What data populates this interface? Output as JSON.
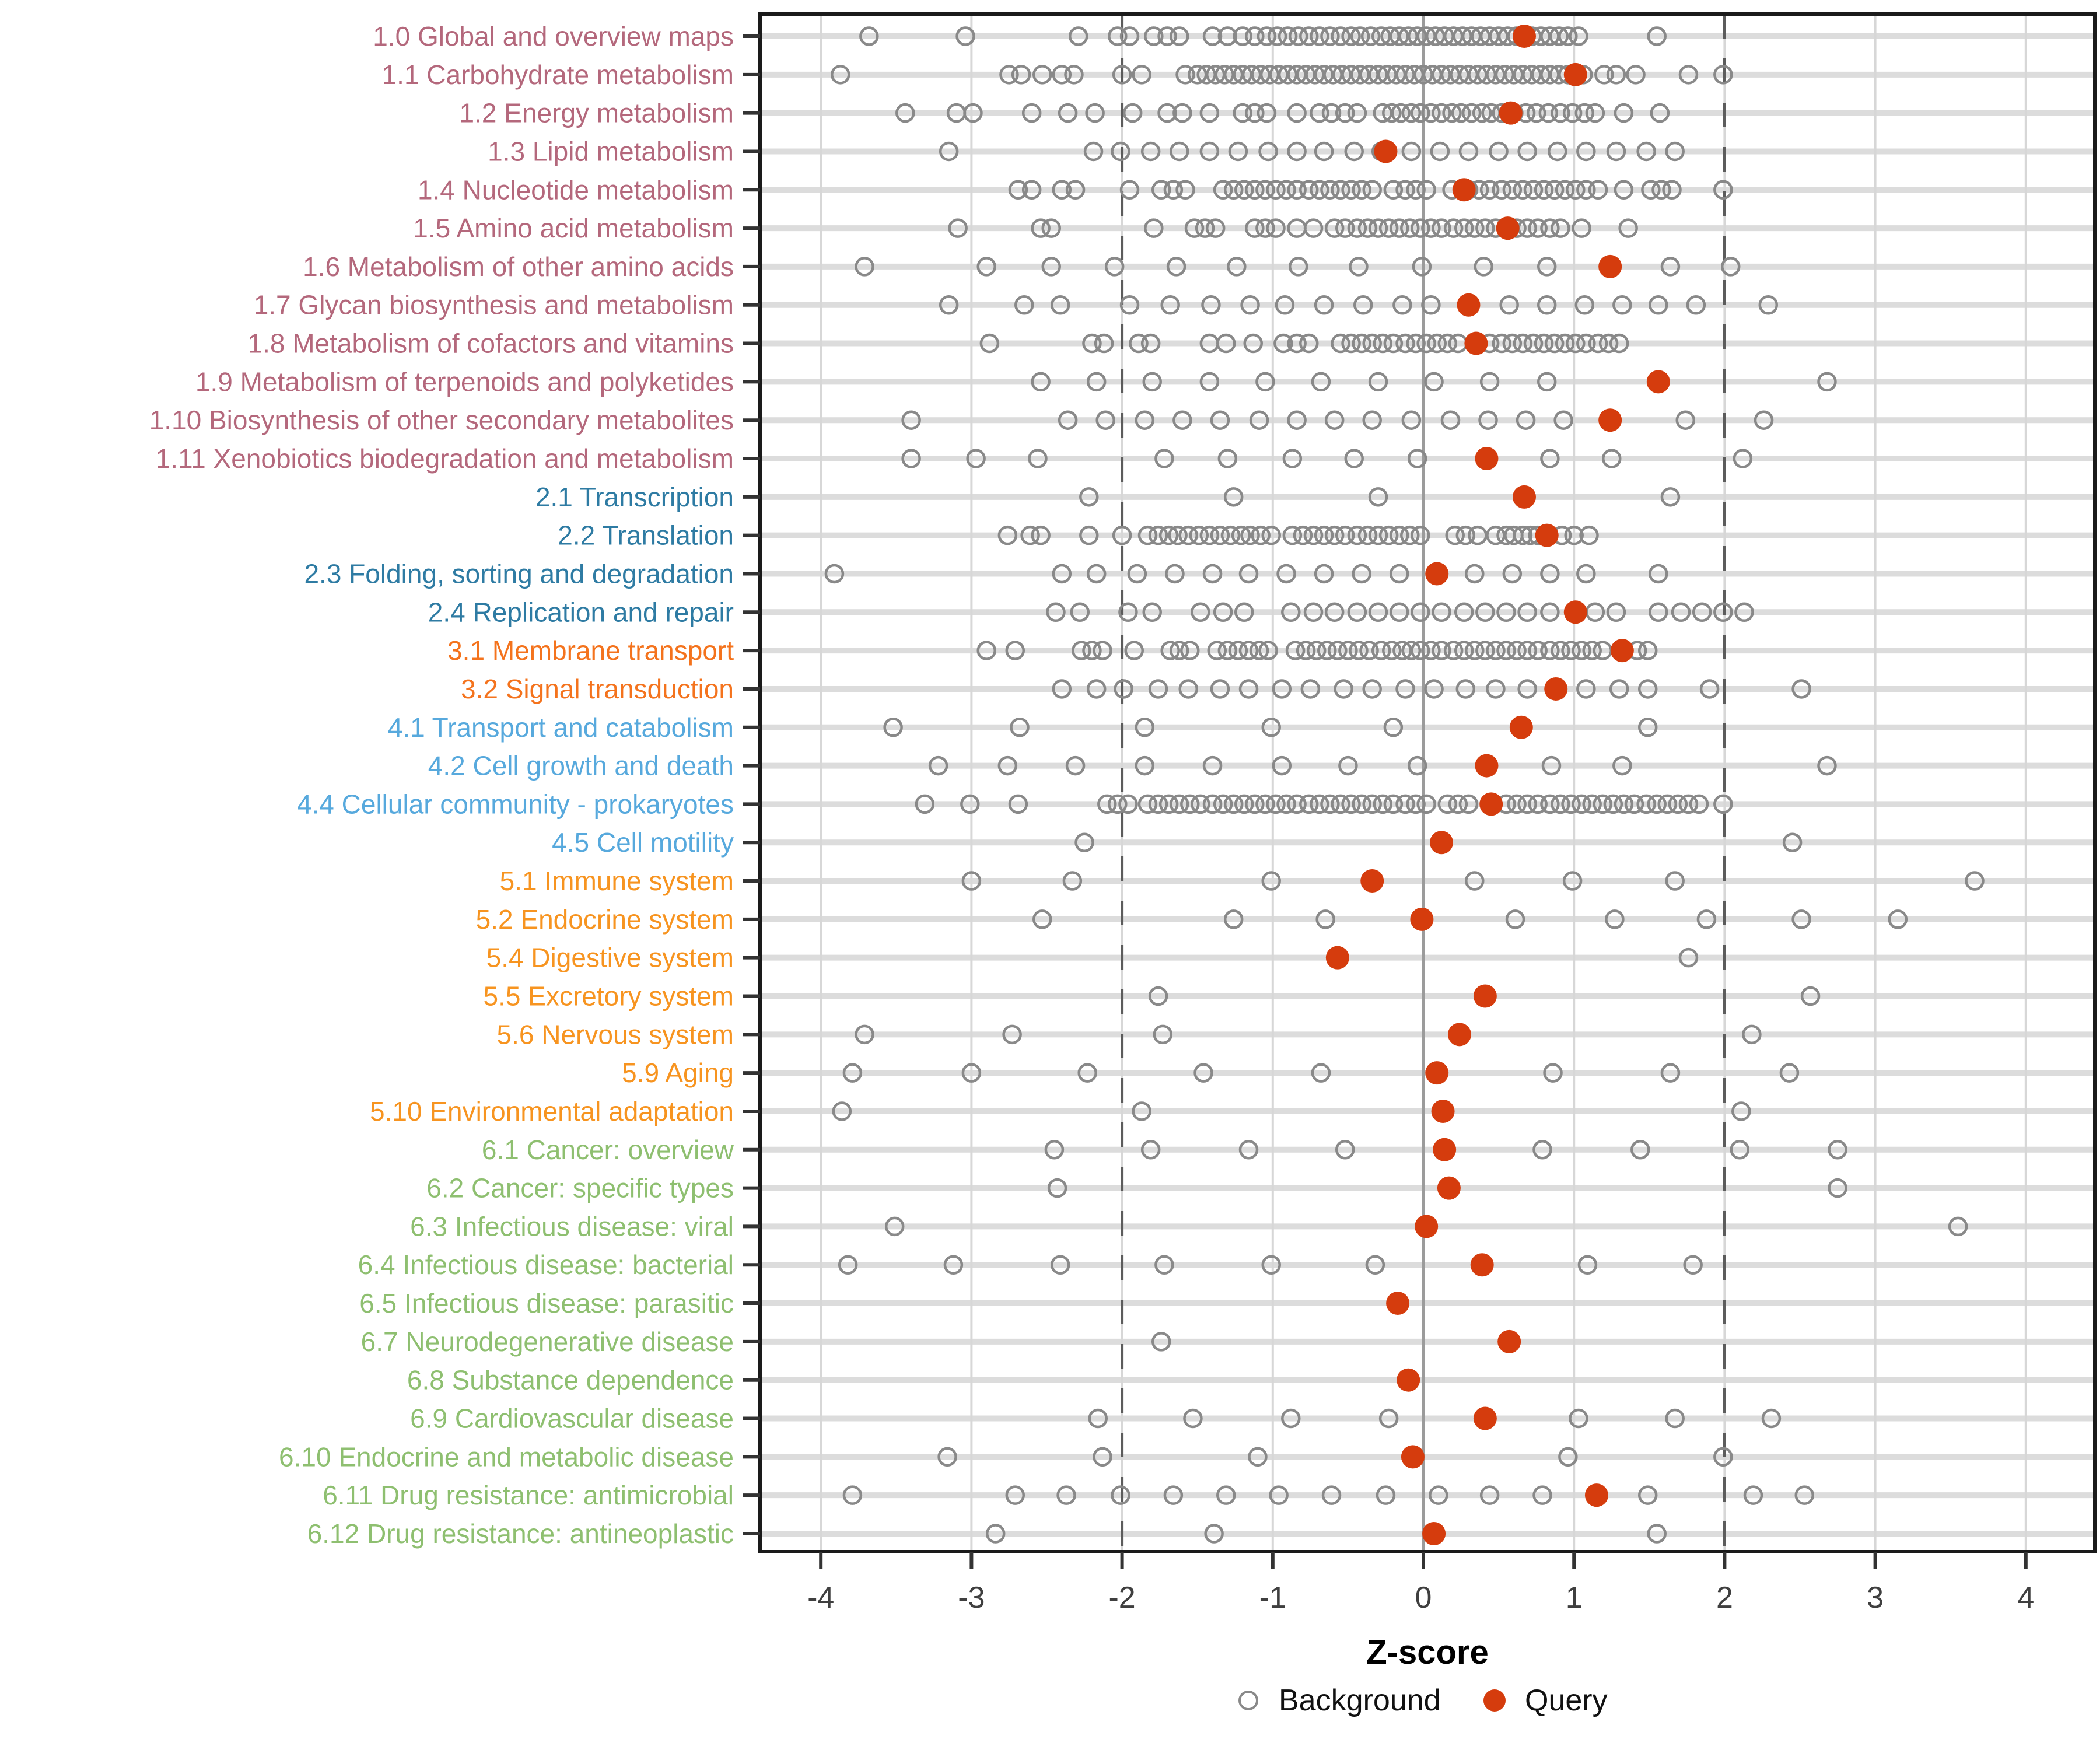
{
  "figure": {
    "colors": {
      "query": "#d53c0d",
      "background_stroke": "#898989",
      "row_grid": "#dcdcdc",
      "minor_grid": "#d7d7d7",
      "zero_line": "#9b9b9b",
      "dashed_line": "#5c5c5c",
      "panel_border": "#1a1a1a",
      "axis_text": "#3f3f3f",
      "groups": {
        "1": "#b4687c",
        "2": "#2e7ba3",
        "3": "#f4731d",
        "4": "#57a9dd",
        "5": "#f79420",
        "6": "#8ebf70"
      }
    },
    "legend": {
      "background_label": "Background",
      "query_label": "Query"
    }
  },
  "chart_data": {
    "type": "scatter",
    "title": "",
    "xlabel": "Z-score",
    "xlim": [
      -4.4,
      4.45
    ],
    "x_ticks": [
      "-4",
      "-3",
      "-2",
      "-1",
      "0",
      "1",
      "2",
      "3",
      "4"
    ],
    "x_tick_values": [
      -4,
      -3,
      -2,
      -1,
      0,
      1,
      2,
      3,
      4
    ],
    "grid": true,
    "legend_position": "bottom",
    "reference_lines": {
      "solid_at": 0,
      "dashed_at": [
        -2,
        2
      ]
    },
    "series_legend": [
      "Background",
      "Query"
    ],
    "rows": [
      {
        "label": "1.0 Global and overview maps",
        "group": "1",
        "query": 0.67,
        "background": [
          -3.68,
          -3.04,
          -2.29,
          -2.03,
          -1.95,
          -1.79,
          -1.7,
          -1.62,
          -1.4,
          -1.3,
          -1.2,
          -1.12,
          -1.04,
          -0.97,
          -0.9,
          -0.83,
          -0.76,
          -0.69,
          -0.62,
          -0.55,
          -0.48,
          -0.42,
          -0.35,
          -0.28,
          -0.22,
          -0.16,
          -0.1,
          -0.04,
          0.02,
          0.08,
          0.14,
          0.2,
          0.26,
          0.32,
          0.38,
          0.44,
          0.5,
          0.56,
          0.62,
          0.72,
          0.78,
          0.84,
          0.9,
          0.96,
          1.03,
          1.55
        ]
      },
      {
        "label": "1.1 Carbohydrate metabolism",
        "group": "1",
        "query": 1.01,
        "background": [
          -3.87,
          -2.75,
          -2.67,
          -2.53,
          -2.4,
          -2.32,
          -2.0,
          -1.87,
          -1.58,
          -1.5,
          -1.44,
          -1.38,
          -1.32,
          -1.26,
          -1.2,
          -1.14,
          -1.08,
          -1.02,
          -0.96,
          -0.9,
          -0.84,
          -0.78,
          -0.72,
          -0.66,
          -0.6,
          -0.54,
          -0.48,
          -0.42,
          -0.36,
          -0.3,
          -0.24,
          -0.18,
          -0.12,
          -0.06,
          0.0,
          0.06,
          0.12,
          0.18,
          0.24,
          0.3,
          0.36,
          0.42,
          0.48,
          0.54,
          0.6,
          0.66,
          0.72,
          0.78,
          0.84,
          0.9,
          0.96,
          1.06,
          1.2,
          1.28,
          1.41,
          1.76,
          1.99
        ]
      },
      {
        "label": "1.2 Energy metabolism",
        "group": "1",
        "query": 0.58,
        "background": [
          -3.44,
          -3.1,
          -2.99,
          -2.6,
          -2.36,
          -2.18,
          -1.93,
          -1.7,
          -1.6,
          -1.42,
          -1.2,
          -1.12,
          -1.04,
          -0.84,
          -0.69,
          -0.61,
          -0.52,
          -0.44,
          -0.27,
          -0.21,
          -0.15,
          -0.08,
          -0.02,
          0.05,
          0.12,
          0.19,
          0.25,
          0.32,
          0.39,
          0.45,
          0.52,
          0.6,
          0.68,
          0.75,
          0.83,
          0.91,
          0.99,
          1.07,
          1.14,
          1.33,
          1.57
        ]
      },
      {
        "label": "1.3 Lipid metabolism",
        "group": "1",
        "query": -0.25,
        "background": [
          -3.15,
          -2.19,
          -2.01,
          -1.81,
          -1.62,
          -1.42,
          -1.23,
          -1.03,
          -0.84,
          -0.66,
          -0.46,
          -0.28,
          -0.08,
          0.11,
          0.3,
          0.5,
          0.69,
          0.89,
          1.08,
          1.28,
          1.48,
          1.67
        ]
      },
      {
        "label": "1.4 Nucleotide metabolism",
        "group": "1",
        "query": 0.27,
        "background": [
          -2.69,
          -2.6,
          -2.4,
          -2.31,
          -1.95,
          -1.74,
          -1.66,
          -1.58,
          -1.33,
          -1.26,
          -1.19,
          -1.12,
          -1.05,
          -0.98,
          -0.91,
          -0.84,
          -0.76,
          -0.69,
          -0.62,
          -0.55,
          -0.48,
          -0.41,
          -0.34,
          -0.2,
          -0.12,
          -0.05,
          0.02,
          0.19,
          0.3,
          0.37,
          0.44,
          0.52,
          0.59,
          0.66,
          0.73,
          0.8,
          0.87,
          0.94,
          1.01,
          1.08,
          1.16,
          1.33,
          1.51,
          1.58,
          1.65,
          1.99
        ]
      },
      {
        "label": "1.5 Amino acid metabolism",
        "group": "1",
        "query": 0.56,
        "background": [
          -3.09,
          -2.54,
          -2.47,
          -1.79,
          -1.52,
          -1.45,
          -1.38,
          -1.12,
          -1.05,
          -0.98,
          -0.84,
          -0.73,
          -0.59,
          -0.52,
          -0.44,
          -0.37,
          -0.3,
          -0.23,
          -0.16,
          -0.09,
          -0.02,
          0.05,
          0.12,
          0.2,
          0.27,
          0.34,
          0.41,
          0.48,
          0.62,
          0.69,
          0.76,
          0.84,
          0.91,
          1.05,
          1.36
        ]
      },
      {
        "label": "1.6 Metabolism of other amino acids",
        "group": "1",
        "query": 1.24,
        "background": [
          -3.71,
          -2.9,
          -2.47,
          -2.05,
          -1.64,
          -1.24,
          -0.83,
          -0.43,
          -0.01,
          0.4,
          0.82,
          1.64,
          2.04
        ]
      },
      {
        "label": "1.7 Glycan biosynthesis and metabolism",
        "group": "1",
        "query": 0.3,
        "background": [
          -3.15,
          -2.65,
          -2.41,
          -1.95,
          -1.68,
          -1.41,
          -1.15,
          -0.92,
          -0.66,
          -0.4,
          -0.14,
          0.05,
          0.57,
          0.82,
          1.07,
          1.32,
          1.56,
          1.81,
          2.29
        ]
      },
      {
        "label": "1.8 Metabolism of cofactors and vitamins",
        "group": "1",
        "query": 0.35,
        "background": [
          -2.88,
          -2.2,
          -2.12,
          -1.89,
          -1.81,
          -1.42,
          -1.31,
          -1.13,
          -0.93,
          -0.84,
          -0.76,
          -0.55,
          -0.48,
          -0.41,
          -0.34,
          -0.27,
          -0.2,
          -0.12,
          -0.05,
          0.02,
          0.09,
          0.16,
          0.23,
          0.44,
          0.52,
          0.59,
          0.66,
          0.73,
          0.8,
          0.87,
          0.94,
          1.01,
          1.08,
          1.16,
          1.23,
          1.3
        ]
      },
      {
        "label": "1.9 Metabolism of terpenoids and polyketides",
        "group": "1",
        "query": 1.56,
        "background": [
          -2.54,
          -2.17,
          -1.8,
          -1.42,
          -1.05,
          -0.68,
          -0.3,
          0.07,
          0.44,
          0.82,
          2.68
        ]
      },
      {
        "label": "1.10 Biosynthesis of other secondary metabolites",
        "group": "1",
        "query": 1.24,
        "background": [
          -3.4,
          -2.36,
          -2.11,
          -1.85,
          -1.6,
          -1.35,
          -1.09,
          -0.84,
          -0.59,
          -0.34,
          -0.08,
          0.18,
          0.43,
          0.68,
          0.93,
          1.74,
          2.26
        ]
      },
      {
        "label": "1.11 Xenobiotics biodegradation and metabolism",
        "group": "1",
        "query": 0.42,
        "background": [
          -3.4,
          -2.97,
          -2.56,
          -1.72,
          -1.3,
          -0.87,
          -0.46,
          -0.04,
          0.84,
          1.25,
          2.12
        ]
      },
      {
        "label": "2.1 Transcription",
        "group": "2",
        "query": 0.67,
        "background": [
          -2.22,
          -1.26,
          -0.3,
          1.64
        ]
      },
      {
        "label": "2.2 Translation",
        "group": "2",
        "query": 0.82,
        "background": [
          -2.76,
          -2.61,
          -2.54,
          -2.22,
          -2.0,
          -1.83,
          -1.76,
          -1.69,
          -1.63,
          -1.56,
          -1.49,
          -1.42,
          -1.35,
          -1.28,
          -1.21,
          -1.15,
          -1.08,
          -1.01,
          -0.87,
          -0.8,
          -0.73,
          -0.66,
          -0.59,
          -0.52,
          -0.44,
          -0.37,
          -0.3,
          -0.23,
          -0.16,
          -0.09,
          -0.02,
          0.21,
          0.28,
          0.36,
          0.48,
          0.55,
          0.6,
          0.66,
          0.71,
          0.76,
          0.92,
          1.0,
          1.1
        ]
      },
      {
        "label": "2.3 Folding, sorting and degradation",
        "group": "2",
        "query": 0.09,
        "background": [
          -3.91,
          -2.4,
          -2.17,
          -1.9,
          -1.65,
          -1.4,
          -1.16,
          -0.91,
          -0.66,
          -0.41,
          -0.16,
          0.34,
          0.59,
          0.84,
          1.08,
          1.56
        ]
      },
      {
        "label": "2.4 Replication and repair",
        "group": "2",
        "query": 1.01,
        "background": [
          -2.44,
          -2.28,
          -1.96,
          -1.8,
          -1.48,
          -1.33,
          -1.19,
          -0.88,
          -0.73,
          -0.59,
          -0.44,
          -0.3,
          -0.16,
          -0.02,
          0.12,
          0.27,
          0.41,
          0.55,
          0.69,
          0.84,
          1.14,
          1.28,
          1.56,
          1.71,
          1.85,
          1.99,
          2.13
        ]
      },
      {
        "label": "3.1 Membrane transport",
        "group": "3",
        "query": 1.32,
        "background": [
          -2.9,
          -2.71,
          -2.27,
          -2.2,
          -2.13,
          -1.92,
          -1.68,
          -1.62,
          -1.55,
          -1.37,
          -1.3,
          -1.23,
          -1.16,
          -1.09,
          -1.03,
          -0.85,
          -0.78,
          -0.71,
          -0.64,
          -0.57,
          -0.5,
          -0.43,
          -0.36,
          -0.28,
          -0.21,
          -0.14,
          -0.08,
          -0.02,
          0.05,
          0.12,
          0.2,
          0.27,
          0.34,
          0.41,
          0.48,
          0.55,
          0.62,
          0.69,
          0.76,
          0.84,
          0.91,
          0.98,
          1.05,
          1.12,
          1.19,
          1.42,
          1.49
        ]
      },
      {
        "label": "3.2 Signal transduction",
        "group": "3",
        "query": 0.88,
        "background": [
          -2.4,
          -2.17,
          -1.99,
          -1.76,
          -1.56,
          -1.35,
          -1.16,
          -0.94,
          -0.75,
          -0.53,
          -0.34,
          -0.12,
          0.07,
          0.28,
          0.48,
          0.69,
          1.08,
          1.3,
          1.49,
          1.9,
          2.51
        ]
      },
      {
        "label": "4.1 Transport and catabolism",
        "group": "4",
        "query": 0.65,
        "background": [
          -3.52,
          -2.68,
          -1.85,
          -1.01,
          -0.2,
          1.49
        ]
      },
      {
        "label": "4.2 Cell growth and death",
        "group": "4",
        "query": 0.42,
        "background": [
          -3.22,
          -2.76,
          -2.31,
          -1.85,
          -1.4,
          -0.94,
          -0.5,
          -0.04,
          0.85,
          1.32,
          2.68
        ]
      },
      {
        "label": "4.4 Cellular community - prokaryotes",
        "group": "4",
        "query": 0.45,
        "background": [
          -3.31,
          -3.01,
          -2.69,
          -2.1,
          -2.03,
          -1.96,
          -1.83,
          -1.76,
          -1.69,
          -1.62,
          -1.55,
          -1.48,
          -1.4,
          -1.33,
          -1.26,
          -1.19,
          -1.12,
          -1.05,
          -0.98,
          -0.91,
          -0.84,
          -0.76,
          -0.69,
          -0.62,
          -0.55,
          -0.48,
          -0.41,
          -0.34,
          -0.27,
          -0.2,
          -0.12,
          -0.05,
          0.02,
          0.16,
          0.23,
          0.3,
          0.55,
          0.62,
          0.69,
          0.76,
          0.84,
          0.91,
          0.98,
          1.05,
          1.12,
          1.19,
          1.26,
          1.33,
          1.4,
          1.48,
          1.55,
          1.62,
          1.69,
          1.76,
          1.83,
          1.99
        ]
      },
      {
        "label": "4.5 Cell motility",
        "group": "4",
        "query": 0.12,
        "background": [
          -2.25,
          2.45
        ]
      },
      {
        "label": "5.1 Immune system",
        "group": "5",
        "query": -0.34,
        "background": [
          -3.0,
          -2.33,
          -1.01,
          0.34,
          0.99,
          1.67,
          3.66
        ]
      },
      {
        "label": "5.2 Endocrine system",
        "group": "5",
        "query": -0.01,
        "background": [
          -2.53,
          -1.26,
          -0.65,
          0.61,
          1.27,
          1.88,
          2.51,
          3.15
        ]
      },
      {
        "label": "5.4 Digestive system",
        "group": "5",
        "query": -0.57,
        "background": [
          1.76
        ]
      },
      {
        "label": "5.5 Excretory system",
        "group": "5",
        "query": 0.41,
        "background": [
          -1.76,
          2.57
        ]
      },
      {
        "label": "5.6 Nervous system",
        "group": "5",
        "query": 0.24,
        "background": [
          -3.71,
          -2.73,
          -1.73,
          2.18
        ]
      },
      {
        "label": "5.9 Aging",
        "group": "5",
        "query": 0.09,
        "background": [
          -3.79,
          -3.0,
          -2.23,
          -1.46,
          -0.68,
          0.86,
          1.64,
          2.43
        ]
      },
      {
        "label": "5.10 Environmental adaptation",
        "group": "5",
        "query": 0.13,
        "background": [
          -3.86,
          -1.87,
          2.11
        ]
      },
      {
        "label": "6.1 Cancer: overview",
        "group": "6",
        "query": 0.14,
        "background": [
          -2.45,
          -1.81,
          -1.16,
          -0.52,
          0.79,
          1.44,
          2.1,
          2.75
        ]
      },
      {
        "label": "6.2 Cancer: specific types",
        "group": "6",
        "query": 0.17,
        "background": [
          -2.43,
          2.75
        ]
      },
      {
        "label": "6.3 Infectious disease: viral",
        "group": "6",
        "query": 0.02,
        "background": [
          -3.51,
          3.55
        ]
      },
      {
        "label": "6.4 Infectious disease: bacterial",
        "group": "6",
        "query": 0.39,
        "background": [
          -3.82,
          -3.12,
          -2.41,
          -1.72,
          -1.01,
          -0.32,
          1.09,
          1.79
        ]
      },
      {
        "label": "6.5 Infectious disease: parasitic",
        "group": "6",
        "query": -0.17,
        "background": []
      },
      {
        "label": "6.7 Neurodegenerative disease",
        "group": "6",
        "query": 0.57,
        "background": [
          -1.74
        ]
      },
      {
        "label": "6.8 Substance dependence",
        "group": "6",
        "query": -0.1,
        "background": []
      },
      {
        "label": "6.9 Cardiovascular disease",
        "group": "6",
        "query": 0.41,
        "background": [
          -2.16,
          -1.53,
          -0.88,
          -0.23,
          1.03,
          1.67,
          2.31
        ]
      },
      {
        "label": "6.10 Endocrine and metabolic disease",
        "group": "6",
        "query": -0.07,
        "background": [
          -3.16,
          -2.13,
          -1.1,
          0.96,
          1.99
        ]
      },
      {
        "label": "6.11 Drug resistance: antimicrobial",
        "group": "6",
        "query": 1.15,
        "background": [
          -3.79,
          -2.71,
          -2.37,
          -2.01,
          -1.66,
          -1.31,
          -0.96,
          -0.61,
          -0.25,
          0.1,
          0.44,
          0.79,
          1.49,
          2.19,
          2.53
        ]
      },
      {
        "label": "6.12 Drug resistance: antineoplastic",
        "group": "6",
        "query": 0.07,
        "background": [
          -2.84,
          -1.39,
          1.55
        ]
      }
    ]
  }
}
